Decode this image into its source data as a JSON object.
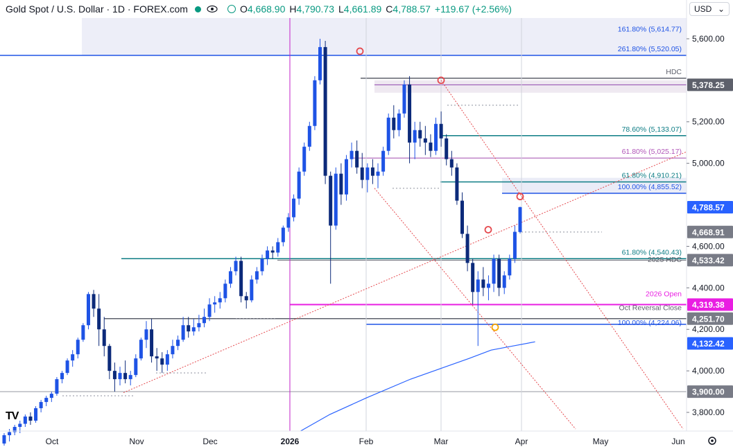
{
  "header": {
    "title": "Gold Spot / U.S. Dollar · 1D · FOREX.com",
    "open_label": "O",
    "open": "4,668.90",
    "high_label": "H",
    "high": "4,790.73",
    "low_label": "L",
    "low": "4,661.89",
    "close_label": "C",
    "close": "4,788.57",
    "change": "+119.67 (+2.56%)"
  },
  "currency_selector": {
    "value": "USD"
  },
  "logo_text": "TV",
  "colors": {
    "up": "#1e53e5",
    "down": "#0c2a7a",
    "axis": "#131722",
    "green": "#089981"
  },
  "chart_data": {
    "type": "candlestick",
    "y_axis_ticks": [
      "5,600.00",
      "5,200.00",
      "5,000.00",
      "4,600.00",
      "4,400.00",
      "4,200.00",
      "4,000.00",
      "3,800.00"
    ],
    "y_axis_ticks_values": [
      5600,
      5200,
      5000,
      4600,
      4400,
      4200,
      4000,
      3800
    ],
    "x_axis_labels": [
      "Oct",
      "Nov",
      "Dec",
      "2026",
      "Feb",
      "Mar",
      "Apr",
      "May",
      "Jun"
    ],
    "y_range": [
      3710,
      5700
    ],
    "price_tags": [
      {
        "text": "5,378.25",
        "value": 5378.25,
        "color": "#5d606b"
      },
      {
        "text": "4,788.57",
        "value": 4788.57,
        "color": "#2962ff"
      },
      {
        "text": "4,668.91",
        "value": 4668.91,
        "color": "#787b86"
      },
      {
        "text": "4,533.42",
        "value": 4533.42,
        "color": "#787b86"
      },
      {
        "text": "4,319.38",
        "value": 4319.38,
        "color": "#e91ee2"
      },
      {
        "text": "4,251.70",
        "value": 4251.7,
        "color": "#787b86"
      },
      {
        "text": "4,132.42",
        "value": 4132.42,
        "color": "#2962ff"
      },
      {
        "text": "3,900.00",
        "value": 3900.0,
        "color": "#787b86"
      }
    ],
    "annotations": [
      {
        "text": "161.80% (5,614.77)",
        "value": 5614.77,
        "color": "#1e53e5"
      },
      {
        "text": "261.80% (5,520.05)",
        "value": 5520.05,
        "color": "#1e53e5"
      },
      {
        "text": "HDC",
        "value": 5410,
        "color": "#5d606b"
      },
      {
        "text": "78.60% (5,133.07)",
        "value": 5133.07,
        "color": "#0c7c84"
      },
      {
        "text": "61.80% (5,025.17)",
        "value": 5025.17,
        "color": "#b055b8"
      },
      {
        "text": "61.80% (4,910.21)",
        "value": 4910.21,
        "color": "#0c7c84"
      },
      {
        "text": "100.00% (4,855.52)",
        "value": 4855.52,
        "color": "#1e53e5"
      },
      {
        "text": "61.80% (4,540.43)",
        "value": 4540.43,
        "color": "#0c7c84"
      },
      {
        "text": "2025 HDC",
        "value": 4505,
        "color": "#5d606b"
      },
      {
        "text": "2026 Open",
        "value": 4340,
        "color": "#e91ee2"
      },
      {
        "text": "Oct Reversal Close",
        "value": 4272,
        "color": "#5d606b"
      },
      {
        "text": "100.00% (4,224.06)",
        "value": 4200,
        "color": "#1e53e5"
      }
    ],
    "candles": [
      [
        3650,
        3700,
        3640,
        3690
      ],
      [
        3690,
        3720,
        3660,
        3705
      ],
      [
        3705,
        3740,
        3690,
        3730
      ],
      [
        3730,
        3760,
        3700,
        3745
      ],
      [
        3745,
        3790,
        3730,
        3780
      ],
      [
        3780,
        3800,
        3740,
        3760
      ],
      [
        3760,
        3830,
        3750,
        3820
      ],
      [
        3820,
        3860,
        3800,
        3850
      ],
      [
        3850,
        3880,
        3830,
        3870
      ],
      [
        3870,
        3900,
        3850,
        3890
      ],
      [
        3890,
        3970,
        3880,
        3960
      ],
      [
        3960,
        4000,
        3940,
        3990
      ],
      [
        3990,
        4060,
        3980,
        4050
      ],
      [
        4050,
        4100,
        4020,
        4080
      ],
      [
        4080,
        4160,
        4060,
        4150
      ],
      [
        4150,
        4230,
        4140,
        4220
      ],
      [
        4220,
        4380,
        4200,
        4370
      ],
      [
        4370,
        4390,
        4260,
        4300
      ],
      [
        4300,
        4370,
        4120,
        4200
      ],
      [
        4200,
        4260,
        4070,
        4120
      ],
      [
        4120,
        4130,
        3960,
        4000
      ],
      [
        4000,
        4040,
        3900,
        3960
      ],
      [
        3960,
        4020,
        3930,
        3990
      ],
      [
        3990,
        4050,
        3940,
        3960
      ],
      [
        3960,
        4000,
        3930,
        3980
      ],
      [
        3980,
        4080,
        3970,
        4060
      ],
      [
        4060,
        4160,
        4050,
        4150
      ],
      [
        4150,
        4240,
        4110,
        4200
      ],
      [
        4200,
        4250,
        4040,
        4070
      ],
      [
        4070,
        4110,
        4000,
        4060
      ],
      [
        4060,
        4090,
        3990,
        4030
      ],
      [
        4030,
        4100,
        4000,
        4080
      ],
      [
        4080,
        4150,
        4060,
        4120
      ],
      [
        4120,
        4170,
        4100,
        4150
      ],
      [
        4150,
        4260,
        4140,
        4220
      ],
      [
        4220,
        4260,
        4160,
        4190
      ],
      [
        4190,
        4250,
        4170,
        4210
      ],
      [
        4210,
        4270,
        4190,
        4230
      ],
      [
        4230,
        4300,
        4210,
        4260
      ],
      [
        4260,
        4350,
        4240,
        4320
      ],
      [
        4320,
        4360,
        4280,
        4330
      ],
      [
        4330,
        4380,
        4300,
        4350
      ],
      [
        4350,
        4440,
        4330,
        4420
      ],
      [
        4420,
        4500,
        4400,
        4480
      ],
      [
        4480,
        4550,
        4460,
        4530
      ],
      [
        4530,
        4550,
        4330,
        4360
      ],
      [
        4360,
        4380,
        4300,
        4340
      ],
      [
        4340,
        4460,
        4330,
        4440
      ],
      [
        4440,
        4500,
        4420,
        4480
      ],
      [
        4480,
        4560,
        4460,
        4540
      ],
      [
        4540,
        4600,
        4510,
        4580
      ],
      [
        4580,
        4600,
        4540,
        4570
      ],
      [
        4570,
        4640,
        4550,
        4620
      ],
      [
        4620,
        4700,
        4600,
        4690
      ],
      [
        4690,
        4760,
        4670,
        4740
      ],
      [
        4740,
        4850,
        4720,
        4830
      ],
      [
        4830,
        4980,
        4800,
        4960
      ],
      [
        4960,
        5100,
        4940,
        5080
      ],
      [
        5080,
        5200,
        5060,
        5180
      ],
      [
        5180,
        5420,
        5160,
        5400
      ],
      [
        5400,
        5600,
        5380,
        5560
      ],
      [
        5560,
        5590,
        4900,
        4940
      ],
      [
        4940,
        4960,
        4420,
        4700
      ],
      [
        4700,
        4980,
        4680,
        4950
      ],
      [
        4950,
        5000,
        4800,
        4850
      ],
      [
        4850,
        5040,
        4820,
        5020
      ],
      [
        5020,
        5100,
        4980,
        5060
      ],
      [
        5060,
        5110,
        4950,
        4980
      ],
      [
        4980,
        5050,
        4880,
        4920
      ],
      [
        4920,
        5000,
        4860,
        4980
      ],
      [
        4980,
        5020,
        4900,
        4940
      ],
      [
        4940,
        5000,
        4880,
        4960
      ],
      [
        4960,
        5080,
        4940,
        5060
      ],
      [
        5060,
        5240,
        5040,
        5220
      ],
      [
        5220,
        5280,
        5120,
        5160
      ],
      [
        5160,
        5260,
        5130,
        5240
      ],
      [
        5240,
        5400,
        5220,
        5380
      ],
      [
        5380,
        5420,
        5000,
        5100
      ],
      [
        5100,
        5200,
        5020,
        5160
      ],
      [
        5160,
        5200,
        5080,
        5120
      ],
      [
        5120,
        5180,
        5040,
        5100
      ],
      [
        5100,
        5140,
        5030,
        5060
      ],
      [
        5060,
        5220,
        5040,
        5190
      ],
      [
        5190,
        5250,
        5080,
        5120
      ],
      [
        5120,
        5140,
        4990,
        5020
      ],
      [
        5020,
        5060,
        4940,
        4980
      ],
      [
        4980,
        5000,
        4800,
        4820
      ],
      [
        4820,
        4860,
        4640,
        4660
      ],
      [
        4660,
        4700,
        4480,
        4520
      ],
      [
        4520,
        4540,
        4320,
        4380
      ],
      [
        4380,
        4480,
        4120,
        4440
      ],
      [
        4440,
        4500,
        4360,
        4400
      ],
      [
        4400,
        4460,
        4340,
        4420
      ],
      [
        4420,
        4560,
        4380,
        4540
      ],
      [
        4540,
        4560,
        4360,
        4400
      ],
      [
        4400,
        4480,
        4370,
        4460
      ],
      [
        4460,
        4560,
        4440,
        4540
      ],
      [
        4540,
        4700,
        4520,
        4670
      ],
      [
        4669,
        4791,
        4662,
        4789
      ]
    ],
    "ma_points": [
      [
        0.41,
        3710
      ],
      [
        0.45,
        3790
      ],
      [
        0.5,
        3870
      ],
      [
        0.56,
        3960
      ],
      [
        0.6,
        4010
      ],
      [
        0.64,
        4060
      ],
      [
        0.67,
        4100
      ],
      [
        0.7,
        4120
      ],
      [
        0.73,
        4140
      ]
    ]
  }
}
